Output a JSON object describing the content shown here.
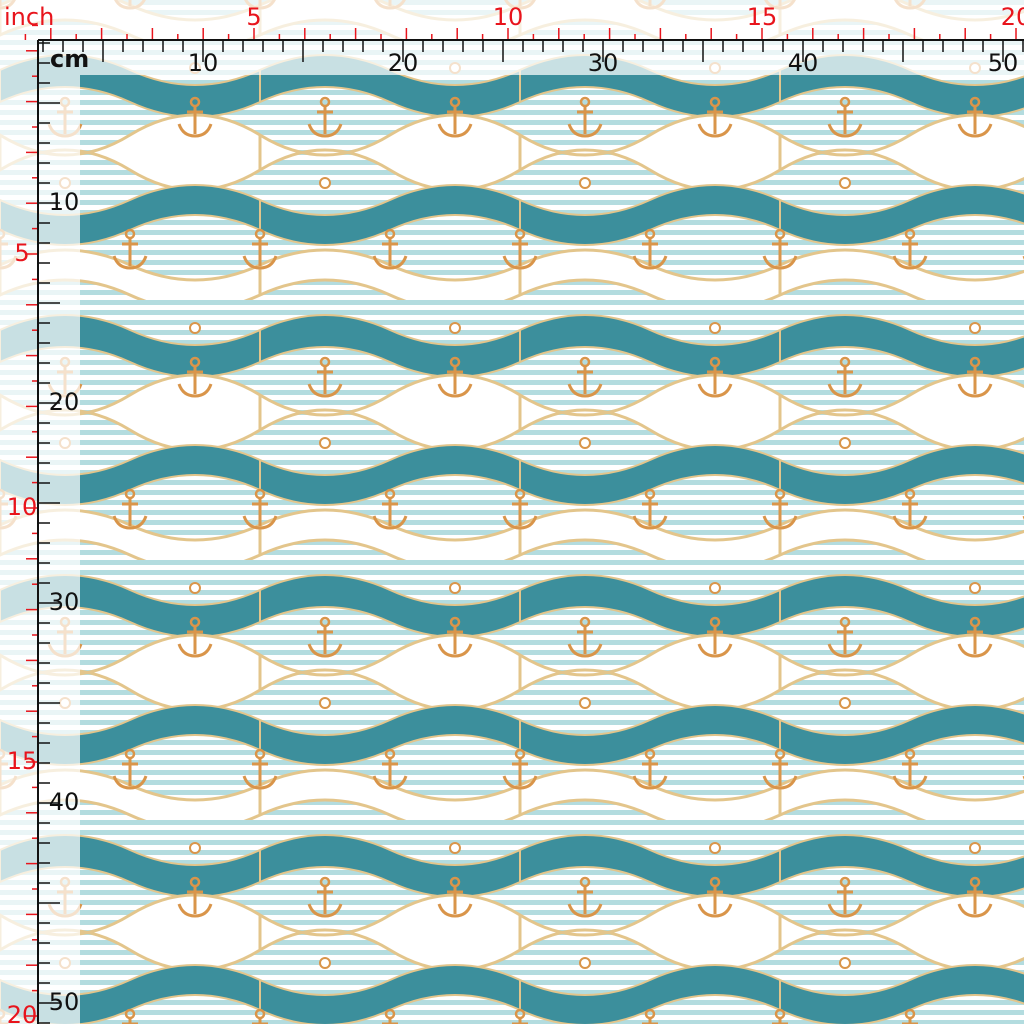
{
  "rulers": {
    "top": {
      "unit_inch": "inch",
      "inch_labels": [
        5,
        10,
        15,
        20
      ],
      "unit_cm": "cm",
      "cm_labels": [
        10,
        20,
        30,
        40,
        50
      ]
    },
    "left": {
      "inch_labels": [
        5,
        10,
        15,
        20
      ],
      "cm_labels": [
        10,
        20,
        30,
        40,
        50
      ]
    }
  }
}
